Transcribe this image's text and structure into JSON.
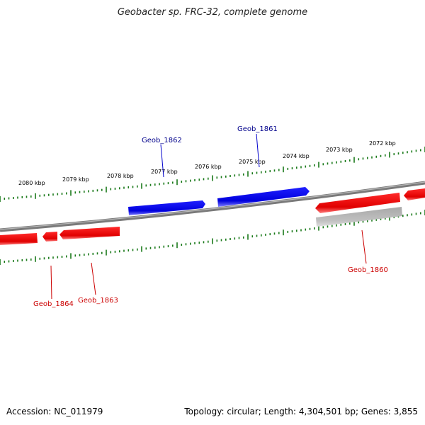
{
  "header": {
    "title": "Geobacter sp. FRC-32, complete genome"
  },
  "footer": {
    "accession_label": "Accession: NC_011979",
    "summary": "Topology: circular; Length: 4,304,501 bp; Genes: 3,855"
  },
  "colors": {
    "forward_gene": "#0000ee",
    "reverse_gene": "#ee0000",
    "pseudo_gene": "#b0b0b0",
    "backbone": "#8c8c8c",
    "tick": "#1a7a1a"
  },
  "scale": {
    "labels": [
      "2080 kbp",
      "2079 kbp",
      "2078 kbp",
      "2077 kbp",
      "2076 kbp",
      "2075 kbp",
      "2074 kbp",
      "2073 kbp",
      "2072 kbp"
    ]
  },
  "genes": [
    {
      "label": "Geob_1862",
      "strand": "forward"
    },
    {
      "label": "Geob_1861",
      "strand": "forward"
    },
    {
      "label": "Geob_1860",
      "strand": "reverse"
    },
    {
      "label": "Geob_1863",
      "strand": "reverse"
    },
    {
      "label": "Geob_1864",
      "strand": "reverse"
    }
  ]
}
